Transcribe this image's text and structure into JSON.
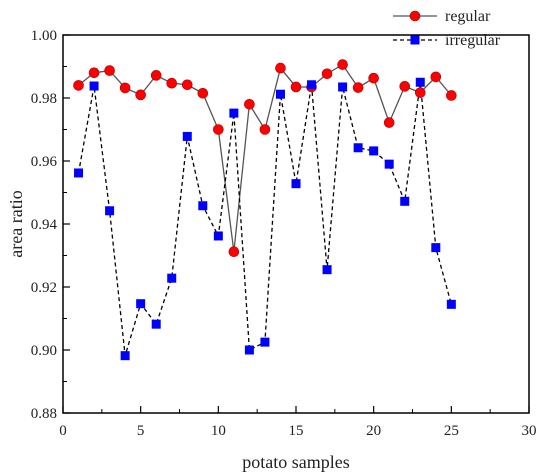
{
  "chart_data": {
    "type": "line",
    "xlabel": "potato samples",
    "ylabel": "area ratio",
    "xlim": [
      0,
      30
    ],
    "ylim": [
      0.88,
      1.0
    ],
    "x_ticks": [
      0,
      5,
      10,
      15,
      20,
      25,
      30
    ],
    "y_ticks": [
      0.88,
      0.9,
      0.92,
      0.94,
      0.96,
      0.98,
      1.0
    ],
    "x_tick_labels": [
      "0",
      "5",
      "10",
      "15",
      "20",
      "25",
      "30"
    ],
    "y_tick_labels": [
      "0.88",
      "0.90",
      "0.92",
      "0.94",
      "0.96",
      "0.98",
      "1.00"
    ],
    "grid": false,
    "legend_position": "top-right",
    "x": [
      1,
      2,
      3,
      4,
      5,
      6,
      7,
      8,
      9,
      10,
      11,
      12,
      13,
      14,
      15,
      16,
      17,
      18,
      19,
      20,
      21,
      22,
      23,
      24,
      25
    ],
    "series": [
      {
        "name": "regular",
        "line_color": "#555555",
        "marker_color": "#ff0000",
        "marker": "circle",
        "line_style": "solid",
        "values": [
          0.984,
          0.988,
          0.9887,
          0.9832,
          0.981,
          0.9872,
          0.9847,
          0.9842,
          0.9815,
          0.97,
          0.9312,
          0.978,
          0.97,
          0.9895,
          0.9835,
          0.9835,
          0.9877,
          0.9906,
          0.9833,
          0.9863,
          0.9722,
          0.9837,
          0.9817,
          0.9867,
          0.9808
        ]
      },
      {
        "name": "irregular",
        "line_color": "#000000",
        "marker_color": "#0000ff",
        "marker": "square",
        "line_style": "dashed",
        "values": [
          0.9562,
          0.9838,
          0.9442,
          0.8982,
          0.9147,
          0.9082,
          0.9228,
          0.9678,
          0.9458,
          0.9362,
          0.9752,
          0.9,
          0.9025,
          0.9812,
          0.9528,
          0.9842,
          0.9255,
          0.9835,
          0.9642,
          0.9632,
          0.959,
          0.9472,
          0.985,
          0.9325,
          0.9145
        ]
      }
    ]
  }
}
